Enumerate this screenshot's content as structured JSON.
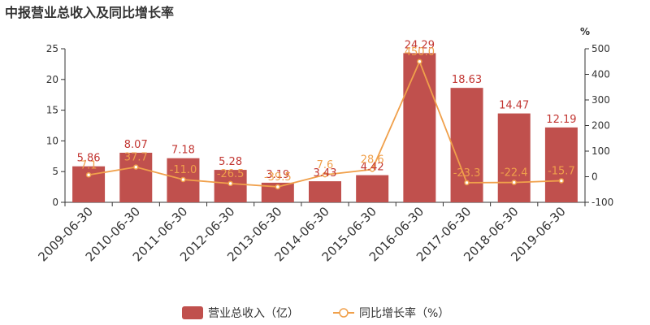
{
  "title": "中报营业总收入及同比增长率",
  "colors": {
    "bar": "#c0504d",
    "line": "#f0a04b",
    "axis": "#333333",
    "bar_label": "#c23531",
    "line_label": "#f0a04b"
  },
  "chart_data": {
    "type": "bar",
    "categories": [
      "2009-06-30",
      "2010-06-30",
      "2011-06-30",
      "2012-06-30",
      "2013-06-30",
      "2014-06-30",
      "2015-06-30",
      "2016-06-30",
      "2017-06-30",
      "2018-06-30",
      "2019-06-30"
    ],
    "series": [
      {
        "name": "营业总收入（亿）",
        "type": "bar",
        "axis": "left",
        "values": [
          5.86,
          8.07,
          7.18,
          5.28,
          3.19,
          3.43,
          4.42,
          24.29,
          18.63,
          14.47,
          12.19
        ],
        "labels": [
          "5.86",
          "8.07",
          "7.18",
          "5.28",
          "3.19",
          "3.43",
          "4.42",
          "24.29",
          "18.63",
          "14.47",
          "12.19"
        ]
      },
      {
        "name": "同比增长率（%）",
        "type": "line",
        "axis": "right",
        "values": [
          7.1,
          37.7,
          -11.0,
          -26.5,
          -39.5,
          7.6,
          28.6,
          450.0,
          -23.3,
          -22.4,
          -15.7
        ],
        "labels": [
          "7.1",
          "37.7",
          "-11.0",
          "-26.5",
          "-39.5",
          "7.6",
          "28.6",
          "450.0",
          "-23.3",
          "-22.4",
          "-15.7"
        ]
      }
    ],
    "left_axis": {
      "min": 0,
      "max": 25,
      "ticks": [
        "0",
        "5",
        "10",
        "15",
        "20",
        "25"
      ]
    },
    "right_axis": {
      "min": -100,
      "max": 500,
      "ticks": [
        "-100",
        "0",
        "100",
        "200",
        "300",
        "400",
        "500"
      ],
      "unit": "%"
    },
    "legend": {
      "position": "bottom",
      "items": [
        "营业总收入（亿）",
        "同比增长率（%）"
      ]
    }
  }
}
